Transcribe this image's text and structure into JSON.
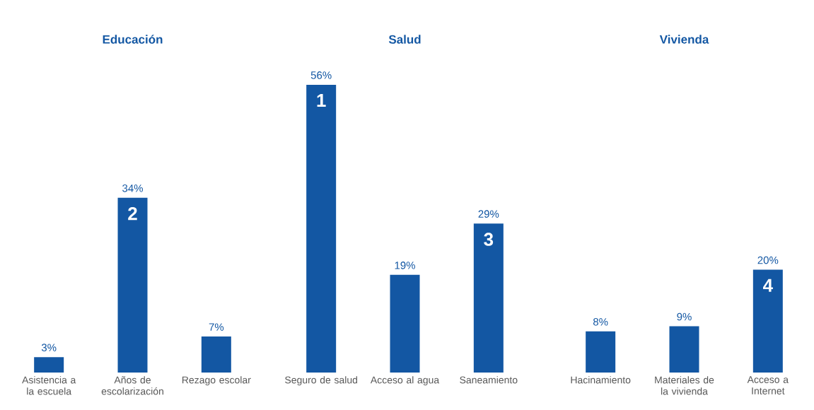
{
  "chart_data": [
    {
      "type": "bar",
      "title": "Educación",
      "categories": [
        "Asistencia a la escuela",
        "Años de escolarización",
        "Rezago escolar"
      ],
      "values": [
        3,
        34,
        7
      ],
      "value_labels": [
        "3%",
        "34%",
        "7%"
      ],
      "color": "#1357a3",
      "annotations": [
        {
          "text": "2",
          "x": "Años de escolarización",
          "y": 34
        }
      ]
    },
    {
      "type": "bar",
      "title": "Salud",
      "categories": [
        "Seguro de salud",
        "Acceso al agua",
        "Saneamiento"
      ],
      "values": [
        56,
        19,
        29
      ],
      "value_labels": [
        "56%",
        "19%",
        "29%"
      ],
      "color": "#1357a3",
      "annotations": [
        {
          "text": "1",
          "x": "Seguro de salud",
          "y": 56
        },
        {
          "text": "3",
          "x": "Saneamiento",
          "y": 29
        }
      ]
    },
    {
      "type": "bar",
      "title": "Vivienda",
      "categories": [
        "Hacinamiento",
        "Materiales de la vivienda",
        "Acceso a Internet"
      ],
      "values": [
        8,
        9,
        20
      ],
      "value_labels": [
        "8%",
        "9%",
        "20%"
      ],
      "color": "#1357a3",
      "annotations": [
        {
          "text": "4",
          "x": "Acceso a Internet",
          "y": 20
        }
      ]
    }
  ]
}
